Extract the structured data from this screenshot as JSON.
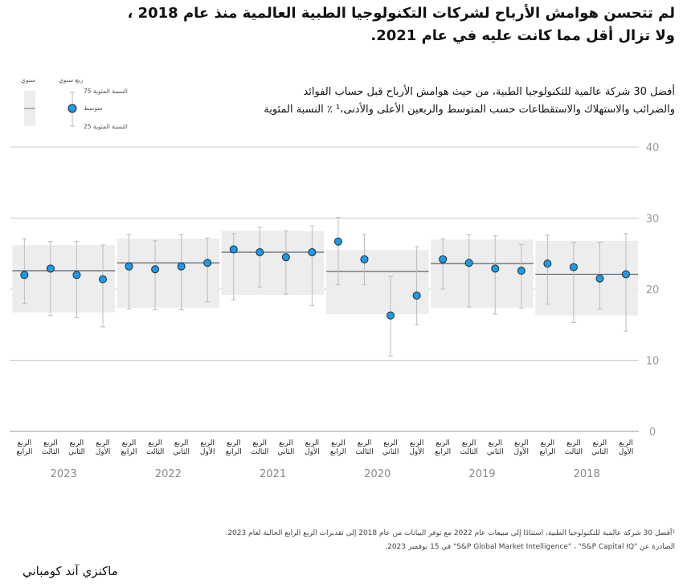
{
  "title": [
    "لم تتحسن هوامش الأرباح لشركات التكنولوجيا الطبية العالمية منذ عام 2018 ،",
    "ولا تزال أقل مما كانت عليه في عام 2021."
  ],
  "subtitle": [
    "أفضل 30 شركة عالمية للتكنولوجيا الطبية، من حيث هوامش الأرباح قبل حساب الفوائد",
    "والضرائب والاستهلاك والاستقطاعات حسب المتوسط والربعين الأعلى والأدنى،¹ ٪ النسبة المئوية"
  ],
  "legend": {
    "annual": "سنوي",
    "quarterly": "ربع سنوي",
    "p75": "النسبة المئوية 75",
    "median": "متوسط",
    "p25": "النسبة المئوية 25"
  },
  "chart_data": {
    "type": "box-dot",
    "ylim": [
      0,
      40
    ],
    "yticks": [
      0,
      10,
      20,
      30,
      40
    ],
    "grid": true,
    "point_color": "#1d9be6",
    "box_color": "#ededed",
    "quarter_labels": [
      "الربع الأول",
      "الربع الثاني",
      "الربع الثالث",
      "الربع الرابع"
    ],
    "years": [
      {
        "name": "2018",
        "annual": {
          "median": 22.1,
          "p25": 16.3,
          "p75": 26.8
        },
        "quarters": [
          {
            "median": 22.1,
            "p25": 14.1,
            "p75": 27.8
          },
          {
            "median": 21.5,
            "p25": 17.2,
            "p75": 26.6
          },
          {
            "median": 23.1,
            "p25": 15.3,
            "p75": 26.6
          },
          {
            "median": 23.6,
            "p25": 17.9,
            "p75": 27.6
          }
        ]
      },
      {
        "name": "2019",
        "annual": {
          "median": 23.6,
          "p25": 17.4,
          "p75": 27.0
        },
        "quarters": [
          {
            "median": 22.6,
            "p25": 17.3,
            "p75": 26.3
          },
          {
            "median": 22.9,
            "p25": 16.5,
            "p75": 27.5
          },
          {
            "median": 23.7,
            "p25": 17.5,
            "p75": 27.7
          },
          {
            "median": 24.2,
            "p25": 20.0,
            "p75": 27.1
          }
        ]
      },
      {
        "name": "2020",
        "annual": {
          "median": 22.5,
          "p25": 16.5,
          "p75": 25.5
        },
        "quarters": [
          {
            "median": 19.1,
            "p25": 15.0,
            "p75": 26.0
          },
          {
            "median": 16.3,
            "p25": 10.6,
            "p75": 21.8
          },
          {
            "median": 24.2,
            "p25": 20.6,
            "p75": 27.7
          },
          {
            "median": 26.7,
            "p25": 20.6,
            "p75": 30.1
          }
        ]
      },
      {
        "name": "2021",
        "annual": {
          "median": 25.2,
          "p25": 19.2,
          "p75": 28.2
        },
        "quarters": [
          {
            "median": 25.2,
            "p25": 17.7,
            "p75": 28.9
          },
          {
            "median": 24.5,
            "p25": 19.3,
            "p75": 28.2
          },
          {
            "median": 25.2,
            "p25": 20.3,
            "p75": 28.7
          },
          {
            "median": 25.6,
            "p25": 18.5,
            "p75": 27.8
          }
        ]
      },
      {
        "name": "2022",
        "annual": {
          "median": 23.7,
          "p25": 17.4,
          "p75": 27.1
        },
        "quarters": [
          {
            "median": 23.7,
            "p25": 18.2,
            "p75": 27.2
          },
          {
            "median": 23.2,
            "p25": 17.1,
            "p75": 27.7
          },
          {
            "median": 22.8,
            "p25": 17.1,
            "p75": 26.8
          },
          {
            "median": 23.2,
            "p25": 17.2,
            "p75": 27.7
          }
        ]
      },
      {
        "name": "2023",
        "annual": {
          "median": 22.6,
          "p25": 16.7,
          "p75": 26.2
        },
        "quarters": [
          {
            "median": 21.4,
            "p25": 14.7,
            "p75": 26.2
          },
          {
            "median": 22.0,
            "p25": 16.0,
            "p75": 26.7
          },
          {
            "median": 22.9,
            "p25": 16.3,
            "p75": 26.7
          },
          {
            "median": 22.0,
            "p25": 18.0,
            "p75": 27.1
          }
        ]
      }
    ]
  },
  "footnotes": [
    "¹أفضل 30 شركة عالمية للتكنولوجيا الطبية، استنادًا إلى مبيعات عام 2022 مع توفر البيانات من عام 2018 إلى تقديرات الربع الرابع الحالية لعام 2023.",
    "الصادرة عن \"S&P Global Market Intelligence\" ، \"S&P Capital IQ\" في 15 نوفمبر 2023."
  ],
  "source": "ماكنزي آند كومباني"
}
